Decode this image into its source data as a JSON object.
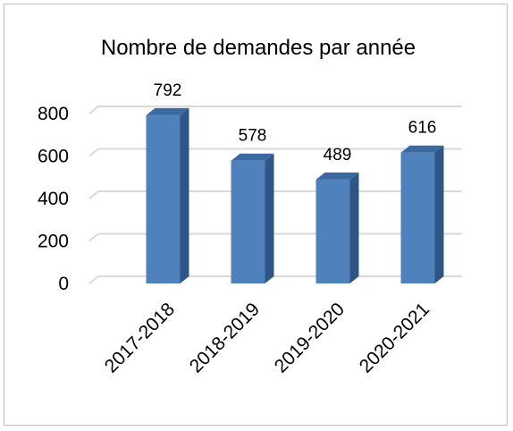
{
  "chart_data": {
    "type": "bar",
    "title": "Nombre de demandes par année",
    "categories": [
      "2017-2018",
      "2018-2019",
      "2019-2020",
      "2020-2021"
    ],
    "values": [
      792,
      578,
      489,
      616
    ],
    "ylim": [
      0,
      800
    ],
    "yticks": [
      "0",
      "200",
      "400",
      "600",
      "800"
    ],
    "xlabel": "",
    "ylabel": "",
    "grid": true,
    "legend": "none",
    "bar_style": "3d",
    "colors": {
      "bar_front": "#4f81bd",
      "bar_side": "#2f5584",
      "bar_top": "#3b6aa3",
      "grid": "#d9d9d9"
    }
  }
}
